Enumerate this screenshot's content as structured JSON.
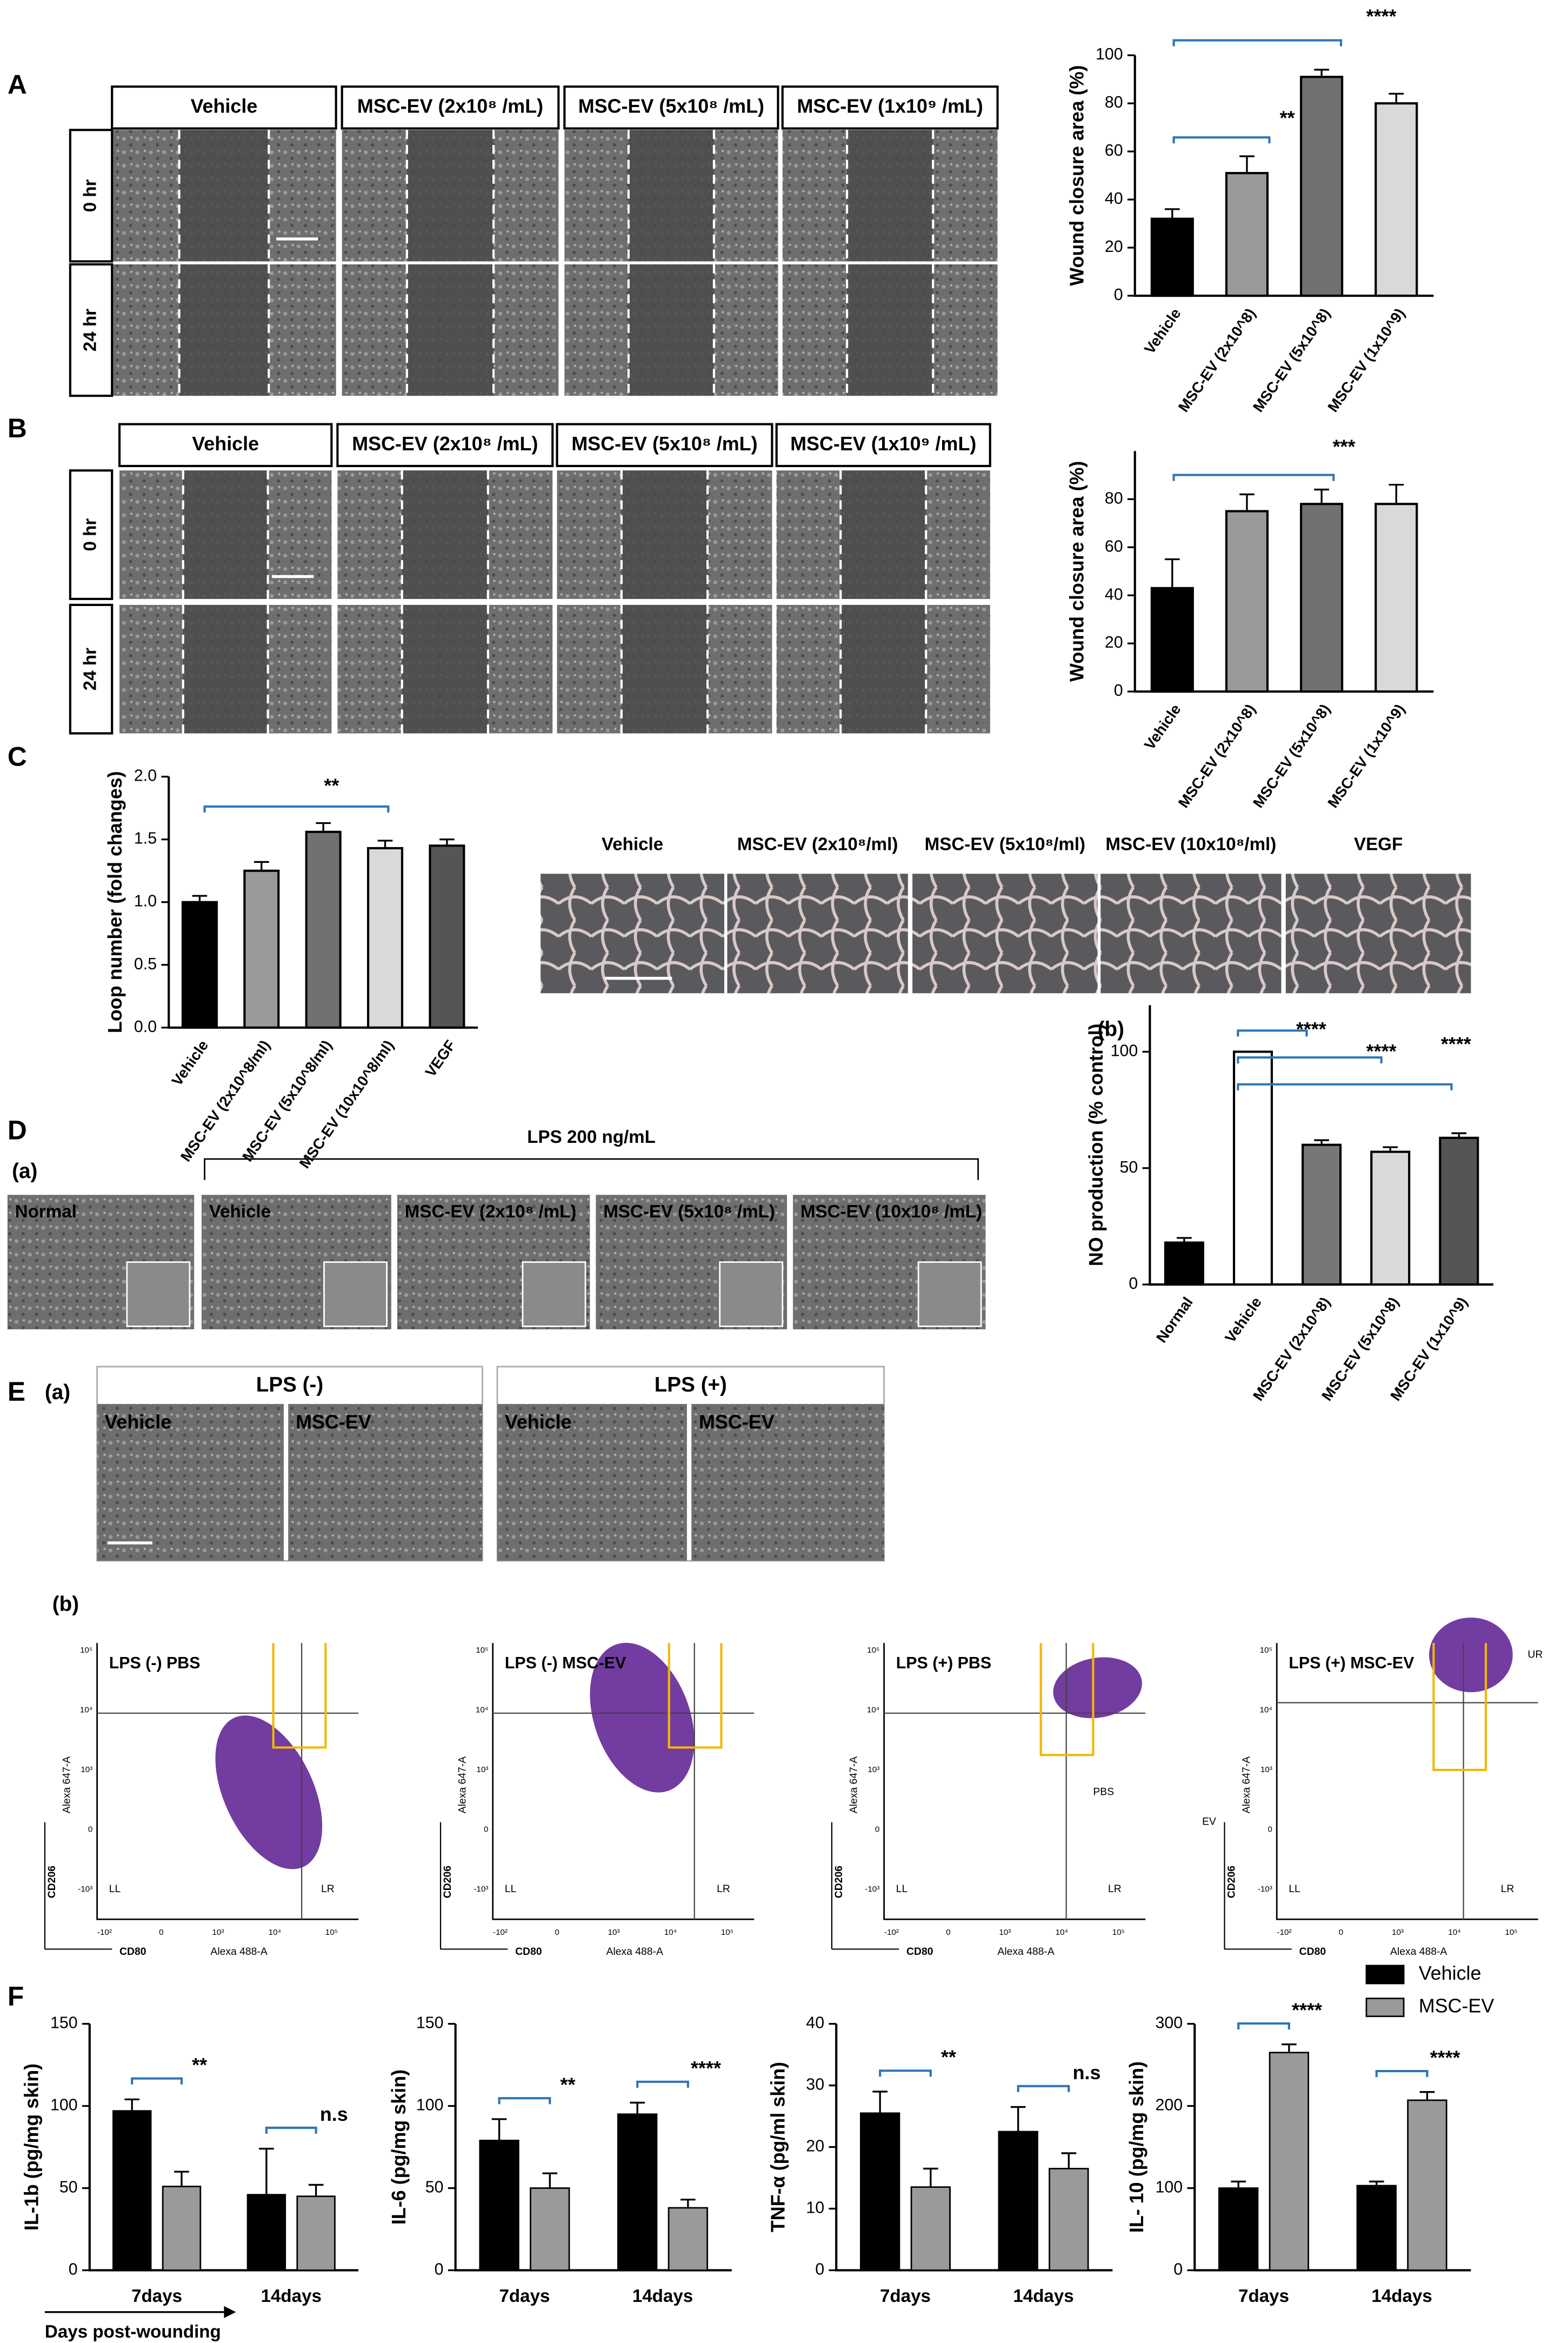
{
  "panels": [
    "A",
    "B",
    "C",
    "D",
    "E",
    "F"
  ],
  "wound_A": {
    "columns": [
      "Vehicle",
      "MSC-EV (2x10⁸ /mL)",
      "MSC-EV (5x10⁸ /mL)",
      "MSC-EV (1x10⁹ /mL)"
    ],
    "rows": [
      "0 hr",
      "24 hr"
    ]
  },
  "wound_B": {
    "columns": [
      "Vehicle",
      "MSC-EV (2x10⁸ /mL)",
      "MSC-EV (5x10⁸ /mL)",
      "MSC-EV (1x10⁹ /mL)"
    ],
    "rows": [
      "0 hr",
      "24 hr"
    ]
  },
  "tube_C": {
    "columns": [
      "Vehicle",
      "MSC-EV (2x10⁸/ml)",
      "MSC-EV (5x10⁸/ml)",
      "MSC-EV (10x10⁸/ml)",
      "VEGF"
    ]
  },
  "macrophage_D": {
    "sublabels": [
      "(a)",
      "(b)"
    ],
    "treatment": "LPS 200 ng/mL",
    "images": [
      "Normal",
      "Vehicle",
      "MSC-EV (2x10⁸ /mL)",
      "MSC-EV (5x10⁸ /mL)",
      "MSC-EV (10x10⁸ /mL)"
    ]
  },
  "polarization_E": {
    "sublabels": [
      "(a)",
      "(b)"
    ],
    "groups": [
      "LPS (-)",
      "LPS (+)"
    ],
    "images": [
      "Vehicle",
      "MSC-EV",
      "Vehicle",
      "MSC-EV"
    ],
    "flow": [
      {
        "title": "LPS (-)   PBS",
        "y_label": "Alexa 647-A",
        "x_label": "Alexa 488-A",
        "y_marker": "CD206",
        "x_marker": "CD80",
        "labels": [
          "LL",
          "LR"
        ]
      },
      {
        "title": "LPS (-) MSC-EV",
        "y_label": "Alexa 647-A",
        "x_label": "Alexa 488-A",
        "y_marker": "CD206",
        "x_marker": "CD80",
        "labels": [
          "LL",
          "LR"
        ]
      },
      {
        "title": "LPS (+)   PBS",
        "y_label": "Alexa 647-A",
        "x_label": "Alexa 488-A",
        "y_marker": "CD206",
        "x_marker": "CD80",
        "labels": [
          "LL",
          "LR",
          "PBS"
        ]
      },
      {
        "title": "LPS (+) MSC-EV",
        "y_label": "Alexa 647-A",
        "x_label": "Alexa 488-A",
        "y_marker": "CD206",
        "x_marker": "CD80",
        "labels": [
          "UR",
          "LL",
          "LR",
          "EV"
        ]
      }
    ],
    "flow_xticks": [
      "-10²",
      "0",
      "10³",
      "10⁴",
      "10⁵"
    ],
    "flow_yticks": [
      "-10³",
      "0",
      "10³",
      "10⁴",
      "10⁵"
    ]
  },
  "chart_data": [
    {
      "type": "bar",
      "y_label": "Wound closure area (%)",
      "categories": [
        "Vehicle",
        "MSC-EV (2x10^8)",
        "MSC-EV (5x10^8)",
        "MSC-EV (1x10^9)"
      ],
      "values": [
        32,
        51,
        91,
        80
      ],
      "errors": [
        4,
        7,
        3,
        4
      ],
      "colors": [
        "#000000",
        "#9a9a9c",
        "#717173",
        "#d9d9d9"
      ],
      "ylim": [
        0,
        100
      ],
      "yticks": [
        0,
        20,
        40,
        60,
        80,
        100
      ],
      "annotations": [
        "**",
        "****"
      ],
      "annotation_color": "#2e75b6"
    },
    {
      "type": "bar",
      "y_label": "Wound closure area (%)",
      "categories": [
        "Vehicle",
        "MSC-EV (2x10^8)",
        "MSC-EV (5x10^8)",
        "MSC-EV (1x10^9)"
      ],
      "values": [
        43,
        75,
        78,
        78
      ],
      "errors": [
        12,
        7,
        6,
        8
      ],
      "colors": [
        "#000000",
        "#9a9a9c",
        "#717173",
        "#d9d9d9"
      ],
      "ylim": [
        0,
        100
      ],
      "yticks": [
        0,
        20,
        40,
        60,
        80
      ],
      "annotations": [
        "***"
      ],
      "annotation_color": "#2e75b6"
    },
    {
      "type": "bar",
      "y_label": "Loop number (fold changes)",
      "categories": [
        "Vehicle",
        "MSC-EV (2x10^8/ml)",
        "MSC-EV (5x10^8/ml)",
        "MSC-EV (10x10^8/ml)",
        "VEGF"
      ],
      "values": [
        1.0,
        1.25,
        1.56,
        1.43,
        1.45
      ],
      "errors": [
        0.05,
        0.07,
        0.07,
        0.06,
        0.05
      ],
      "colors": [
        "#000000",
        "#9a9a9c",
        "#717173",
        "#d9d9d9",
        "#555555"
      ],
      "ylim": [
        0,
        2
      ],
      "yticks": [
        {
          "value": 0,
          "label": "0.0"
        },
        {
          "value": 0.5,
          "label": "0.5"
        },
        {
          "value": 1,
          "label": "1.0"
        },
        {
          "value": 1.5,
          "label": "1.5"
        },
        {
          "value": 2,
          "label": "2.0"
        }
      ],
      "annotations": [
        "**"
      ],
      "annotation_color": "#2e75b6"
    },
    {
      "type": "bar",
      "y_label": "NO production (% control)",
      "categories": [
        "Normal",
        "Vehicle",
        "MSC-EV (2x10^8)",
        "MSC-EV (5x10^8)",
        "MSC-EV (1x10^9)"
      ],
      "values": [
        18,
        100,
        60,
        57,
        63
      ],
      "errors": [
        2,
        0,
        2,
        2,
        2
      ],
      "colors": [
        "#000000",
        "#ffffff",
        "#777777",
        "#d9d9d9",
        "#555555"
      ],
      "ylim": [
        0,
        120
      ],
      "yticks": [
        0,
        50,
        100
      ],
      "annotations": [
        "****",
        "****",
        "****"
      ],
      "annotation_color": "#2e75b6"
    },
    {
      "type": "bar",
      "y_label": "IL-1b (pg/mg skin)",
      "x_label": "Days post-wounding",
      "categories": [
        "7days",
        "14days"
      ],
      "series": [
        {
          "color": "#000000",
          "values": [
            97,
            46
          ],
          "errors": [
            7,
            28
          ]
        },
        {
          "color": "#9a9a9c",
          "values": [
            51,
            45
          ],
          "errors": [
            9,
            7
          ]
        }
      ],
      "ylim": [
        0,
        150
      ],
      "yticks": [
        0,
        50,
        100,
        150
      ],
      "annotations": [
        "**",
        "n.s"
      ],
      "annotation_color": "#2e75b6"
    },
    {
      "type": "bar",
      "y_label": "IL-6 (pg/mg skin)",
      "categories": [
        "7days",
        "14days"
      ],
      "series": [
        {
          "color": "#000000",
          "values": [
            79,
            95
          ],
          "errors": [
            13,
            7
          ]
        },
        {
          "color": "#9a9a9c",
          "values": [
            50,
            38
          ],
          "errors": [
            9,
            5
          ]
        }
      ],
      "ylim": [
        0,
        150
      ],
      "yticks": [
        0,
        50,
        100,
        150
      ],
      "annotations": [
        "**",
        "****"
      ],
      "annotation_color": "#2e75b6"
    },
    {
      "type": "bar",
      "y_label": "TNF-α (pg/ml skin)",
      "categories": [
        "7days",
        "14days"
      ],
      "series": [
        {
          "color": "#000000",
          "values": [
            25.5,
            22.5
          ],
          "errors": [
            3.5,
            4
          ]
        },
        {
          "color": "#9a9a9c",
          "values": [
            13.5,
            16.5
          ],
          "errors": [
            3,
            2.5
          ]
        }
      ],
      "ylim": [
        0,
        40
      ],
      "yticks": [
        0,
        10,
        20,
        30,
        40
      ],
      "annotations": [
        "**",
        "n.s"
      ],
      "annotation_color": "#2e75b6"
    },
    {
      "type": "bar",
      "y_label": "IL- 10 (pg/mg skin)",
      "categories": [
        "7days",
        "14days"
      ],
      "series": [
        {
          "name": "Vehicle",
          "color": "#000000",
          "values": [
            100,
            103
          ],
          "errors": [
            8,
            5
          ]
        },
        {
          "name": "MSC-EV",
          "color": "#9a9a9c",
          "values": [
            265,
            207
          ],
          "errors": [
            10,
            10
          ]
        }
      ],
      "ylim": [
        0,
        300
      ],
      "yticks": [
        0,
        100,
        200,
        300
      ],
      "annotations": [
        "****",
        "****"
      ],
      "annotation_color": "#2e75b6",
      "legend": "upper-right"
    }
  ]
}
